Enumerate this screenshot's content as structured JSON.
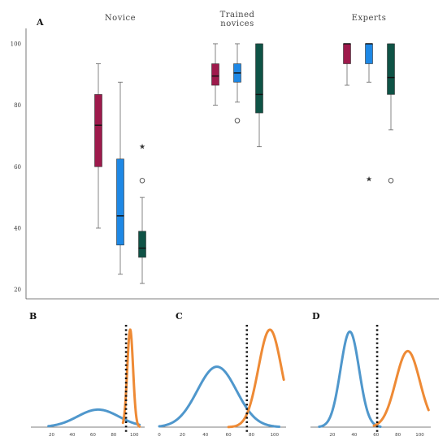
{
  "colors": {
    "crimson": "#9e1a4c",
    "blue": "#1e88e5",
    "teal": "#0f5346",
    "curve_blue": "#4f97cc",
    "curve_orange": "#ee8a35"
  },
  "chart_data": [
    {
      "type": "box",
      "panel_label": "A",
      "ylim": [
        17,
        105
      ],
      "yticks": [
        20,
        40,
        60,
        80,
        100
      ],
      "groups": [
        {
          "name": "Novice",
          "boxes": [
            {
              "color": "crimson",
              "min": 40,
              "q1": 60,
              "median": 73.5,
              "q3": 83.5,
              "max": 93.5,
              "outliers": []
            },
            {
              "color": "blue",
              "min": 25,
              "q1": 34.5,
              "median": 44,
              "q3": 62.5,
              "max": 87.5,
              "outliers": []
            },
            {
              "color": "teal",
              "min": 22,
              "q1": 30.5,
              "median": 33.5,
              "q3": 39,
              "max": 50,
              "outliers": [
                {
                  "value": 55.5,
                  "marker": "circle"
                },
                {
                  "value": 66.5,
                  "marker": "star"
                }
              ]
            }
          ]
        },
        {
          "name": "Trained\nnovices",
          "boxes": [
            {
              "color": "crimson",
              "min": 80,
              "q1": 86.5,
              "median": 89.5,
              "q3": 93.5,
              "max": 100,
              "outliers": []
            },
            {
              "color": "blue",
              "min": 81,
              "q1": 87.5,
              "median": 90.5,
              "q3": 93.5,
              "max": 100,
              "outliers": [
                {
                  "value": 75,
                  "marker": "circle"
                }
              ]
            },
            {
              "color": "teal",
              "min": 66.5,
              "q1": 77.5,
              "median": 83.5,
              "q3": 100,
              "max": 100,
              "outliers": []
            }
          ]
        },
        {
          "name": "Experts",
          "boxes": [
            {
              "color": "crimson",
              "min": 86.5,
              "q1": 93.5,
              "median": 100,
              "q3": 100,
              "max": 100,
              "outliers": []
            },
            {
              "color": "blue",
              "min": 87.5,
              "q1": 93.5,
              "median": 100,
              "q3": 100,
              "max": 100,
              "outliers": [
                {
                  "value": 56,
                  "marker": "star"
                }
              ]
            },
            {
              "color": "teal",
              "min": 72,
              "q1": 83.5,
              "median": 89,
              "q3": 100,
              "max": 100,
              "outliers": [
                {
                  "value": 55.5,
                  "marker": "circle"
                }
              ]
            }
          ]
        }
      ]
    },
    {
      "type": "line",
      "panel_label": "B",
      "xlim": [
        0,
        110
      ],
      "xticks": [
        20,
        40,
        60,
        80,
        100
      ],
      "threshold": 92,
      "curves": [
        {
          "color": "curve_blue",
          "mean": 65,
          "sd": 20,
          "amplitude": 0.18,
          "x_start": 17,
          "x_end": 105
        },
        {
          "color": "curve_orange",
          "mean": 96,
          "sd": 2.8,
          "amplitude": 1.0,
          "x_start": 89,
          "x_end": 105
        }
      ]
    },
    {
      "type": "line",
      "panel_label": "C",
      "xlim": [
        0,
        110
      ],
      "xticks": [
        0,
        20,
        40,
        60,
        80,
        100
      ],
      "threshold": 76,
      "curves": [
        {
          "color": "curve_blue",
          "mean": 50,
          "sd": 17,
          "amplitude": 0.62,
          "x_start": 0,
          "x_end": 104
        },
        {
          "color": "curve_orange",
          "mean": 96,
          "sd": 10,
          "amplitude": 1.0,
          "x_start": 60,
          "x_end": 108
        }
      ]
    },
    {
      "type": "line",
      "panel_label": "D",
      "xlim": [
        0,
        110
      ],
      "xticks": [
        20,
        40,
        60,
        80,
        100
      ],
      "threshold": 61,
      "curves": [
        {
          "color": "curve_blue",
          "mean": 36,
          "sd": 8.5,
          "amplitude": 0.98,
          "x_start": 8,
          "x_end": 64
        },
        {
          "color": "curve_orange",
          "mean": 89,
          "sd": 11,
          "amplitude": 0.78,
          "x_start": 58,
          "x_end": 108
        }
      ]
    }
  ]
}
